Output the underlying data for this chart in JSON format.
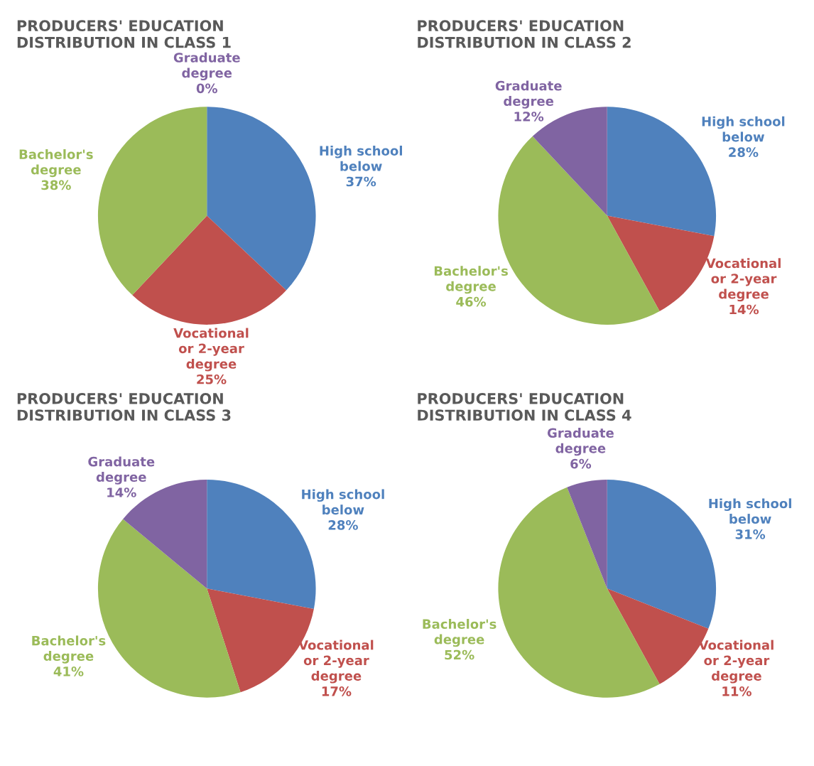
{
  "chart_data": [
    {
      "type": "pie",
      "title": "PRODUCERS' EDUCATION DISTRIBUTION IN CLASS 1",
      "categories": [
        "High school below",
        "Vocational or 2-year degree",
        "Bachelor's degree",
        "Graduate degree"
      ],
      "values": [
        37,
        25,
        38,
        0
      ],
      "value_labels": [
        "37%",
        "25%",
        "38%",
        "0%"
      ],
      "colors": [
        "#4f81bd",
        "#c0504d",
        "#9bbb59",
        "#8064a2"
      ]
    },
    {
      "type": "pie",
      "title": "PRODUCERS' EDUCATION DISTRIBUTION IN CLASS 2",
      "categories": [
        "High school below",
        "Vocational or 2-year degree",
        "Bachelor's degree",
        "Graduate degree"
      ],
      "values": [
        28,
        14,
        46,
        12
      ],
      "value_labels": [
        "28%",
        "14%",
        "46%",
        "12%"
      ],
      "colors": [
        "#4f81bd",
        "#c0504d",
        "#9bbb59",
        "#8064a2"
      ]
    },
    {
      "type": "pie",
      "title": "PRODUCERS' EDUCATION DISTRIBUTION IN CLASS 3",
      "categories": [
        "High school below",
        "Vocational or 2-year degree",
        "Bachelor's degree",
        "Graduate degree"
      ],
      "values": [
        28,
        17,
        41,
        14
      ],
      "value_labels": [
        "28%",
        "17%",
        "41%",
        "14%"
      ],
      "colors": [
        "#4f81bd",
        "#c0504d",
        "#9bbb59",
        "#8064a2"
      ]
    },
    {
      "type": "pie",
      "title": "PRODUCERS' EDUCATION DISTRIBUTION IN CLASS 4",
      "categories": [
        "High school below",
        "Vocational or 2-year degree",
        "Bachelor's degree",
        "Graduate degree"
      ],
      "values": [
        31,
        11,
        52,
        6
      ],
      "value_labels": [
        "31%",
        "11%",
        "52%",
        "6%"
      ],
      "colors": [
        "#4f81bd",
        "#c0504d",
        "#9bbb59",
        "#8064a2"
      ]
    }
  ]
}
